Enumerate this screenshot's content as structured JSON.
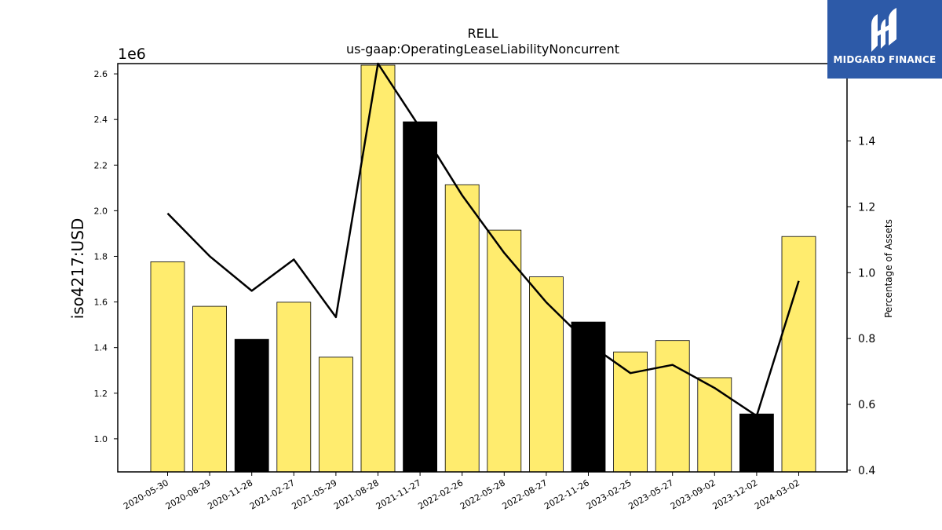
{
  "chart_data": {
    "type": "bar",
    "title": "RELL",
    "subtitle": "us-gaap:OperatingLeaseLiabilityNoncurrent",
    "ylabel": "iso4217:USD",
    "y2label": "Percentage of Assets",
    "y_offset_text": "1e6",
    "categories": [
      "2020-05-30",
      "2020-08-29",
      "2020-11-28",
      "2021-02-27",
      "2021-05-29",
      "2021-08-28",
      "2021-11-27",
      "2022-02-26",
      "2022-05-28",
      "2022-08-27",
      "2022-11-26",
      "2023-02-25",
      "2023-05-27",
      "2023-09-02",
      "2023-12-02",
      "2024-03-02"
    ],
    "values": [
      1776000,
      1581000,
      1436000,
      1599000,
      1358000,
      2638000,
      2390000,
      2114000,
      1915000,
      1710000,
      1512000,
      1381000,
      1431000,
      1268000,
      1109000,
      1887000
    ],
    "bar_colors": [
      "#ffec6e",
      "#ffec6e",
      "#000000",
      "#ffec6e",
      "#ffec6e",
      "#ffec6e",
      "#000000",
      "#ffec6e",
      "#ffec6e",
      "#ffec6e",
      "#000000",
      "#ffec6e",
      "#ffec6e",
      "#ffec6e",
      "#000000",
      "#ffec6e"
    ],
    "ylim": [
      855000,
      2645000
    ],
    "yticks": [
      1.0,
      1.2,
      1.4,
      1.6,
      1.8,
      2.0,
      2.2,
      2.4,
      2.6
    ],
    "line_series": {
      "values": [
        1.18,
        1.05,
        0.945,
        1.04,
        0.865,
        1.64,
        1.44,
        1.235,
        1.06,
        0.91,
        0.785,
        0.695,
        0.72,
        0.65,
        0.565,
        0.975
      ]
    },
    "y2lim": [
      0.395,
      1.635
    ],
    "y2ticks": [
      0.4,
      0.6,
      0.8,
      1.0,
      1.2,
      1.4
    ],
    "grid": false
  },
  "logo": {
    "text": "MIDGARD FINANCE",
    "bg_color": "#2d5aa8"
  }
}
